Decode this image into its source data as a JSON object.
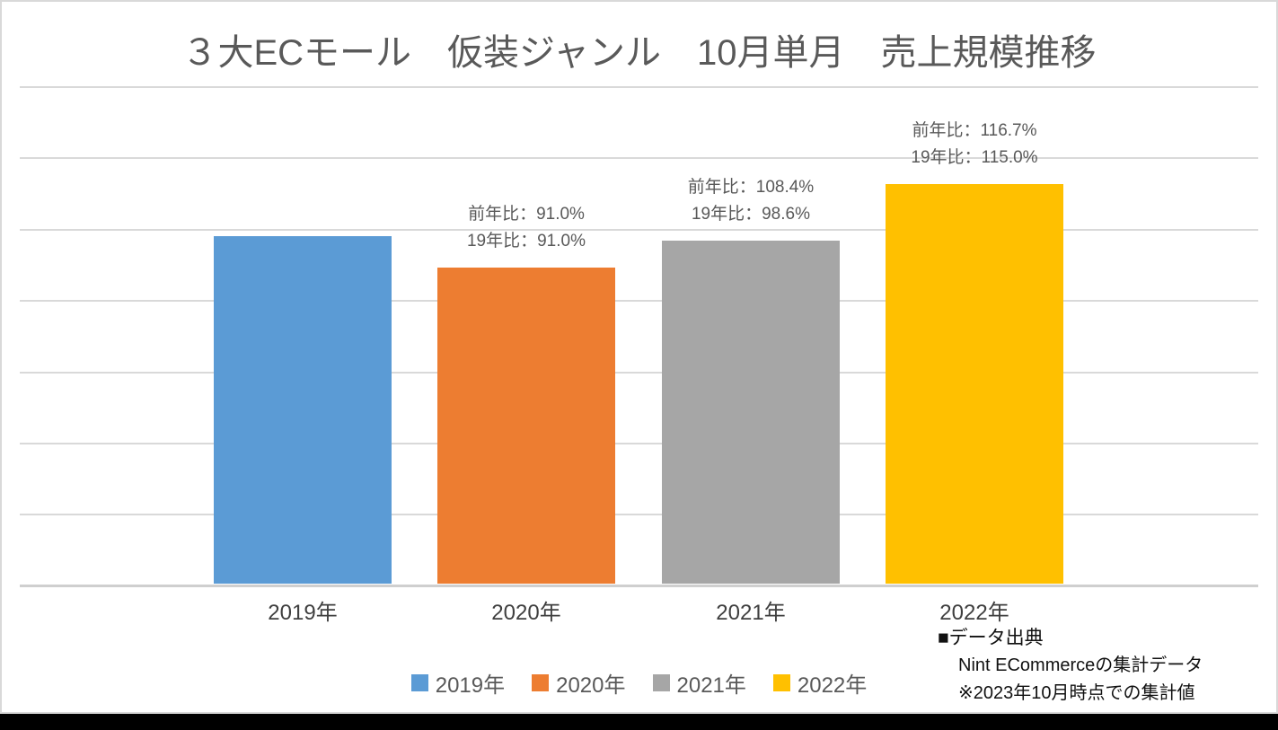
{
  "title": "３大ECモール　仮装ジャンル　10月単月　売上規模推移",
  "chart_data": {
    "type": "bar",
    "title": "３大ECモール　仮装ジャンル　10月単月　売上規模推移",
    "categories": [
      "2019年",
      "2020年",
      "2021年",
      "2022年"
    ],
    "values": [
      100,
      91.0,
      98.6,
      115.0
    ],
    "value_scale_note": "relative index, 2019 = 100 (no y-axis tick labels visible)",
    "colors": [
      "#5B9BD5",
      "#ED7D31",
      "#A6A6A6",
      "#FFC000"
    ],
    "annotations": [
      [],
      [
        "前年比：91.0%",
        "19年比：91.0%"
      ],
      [
        "前年比：108.4%",
        "19年比：98.6%"
      ],
      [
        "前年比：116.7%",
        "19年比：115.0%"
      ]
    ],
    "legend": {
      "position": "bottom-center",
      "entries": [
        "2019年",
        "2020年",
        "2021年",
        "2022年"
      ]
    },
    "grid": true,
    "y_axis_labels_visible": false
  },
  "source": {
    "heading": "■データ出典",
    "lines": [
      "Nint ECommerceの集計データ",
      "※2023年10月時点での集計値"
    ]
  },
  "colors": {
    "grid": "#D9D9D9",
    "title_text": "#595959",
    "annotation_text": "#595959",
    "axis_label_text": "#3F3F3F",
    "source_text": "#111111",
    "bottom_strip": "#000000"
  }
}
